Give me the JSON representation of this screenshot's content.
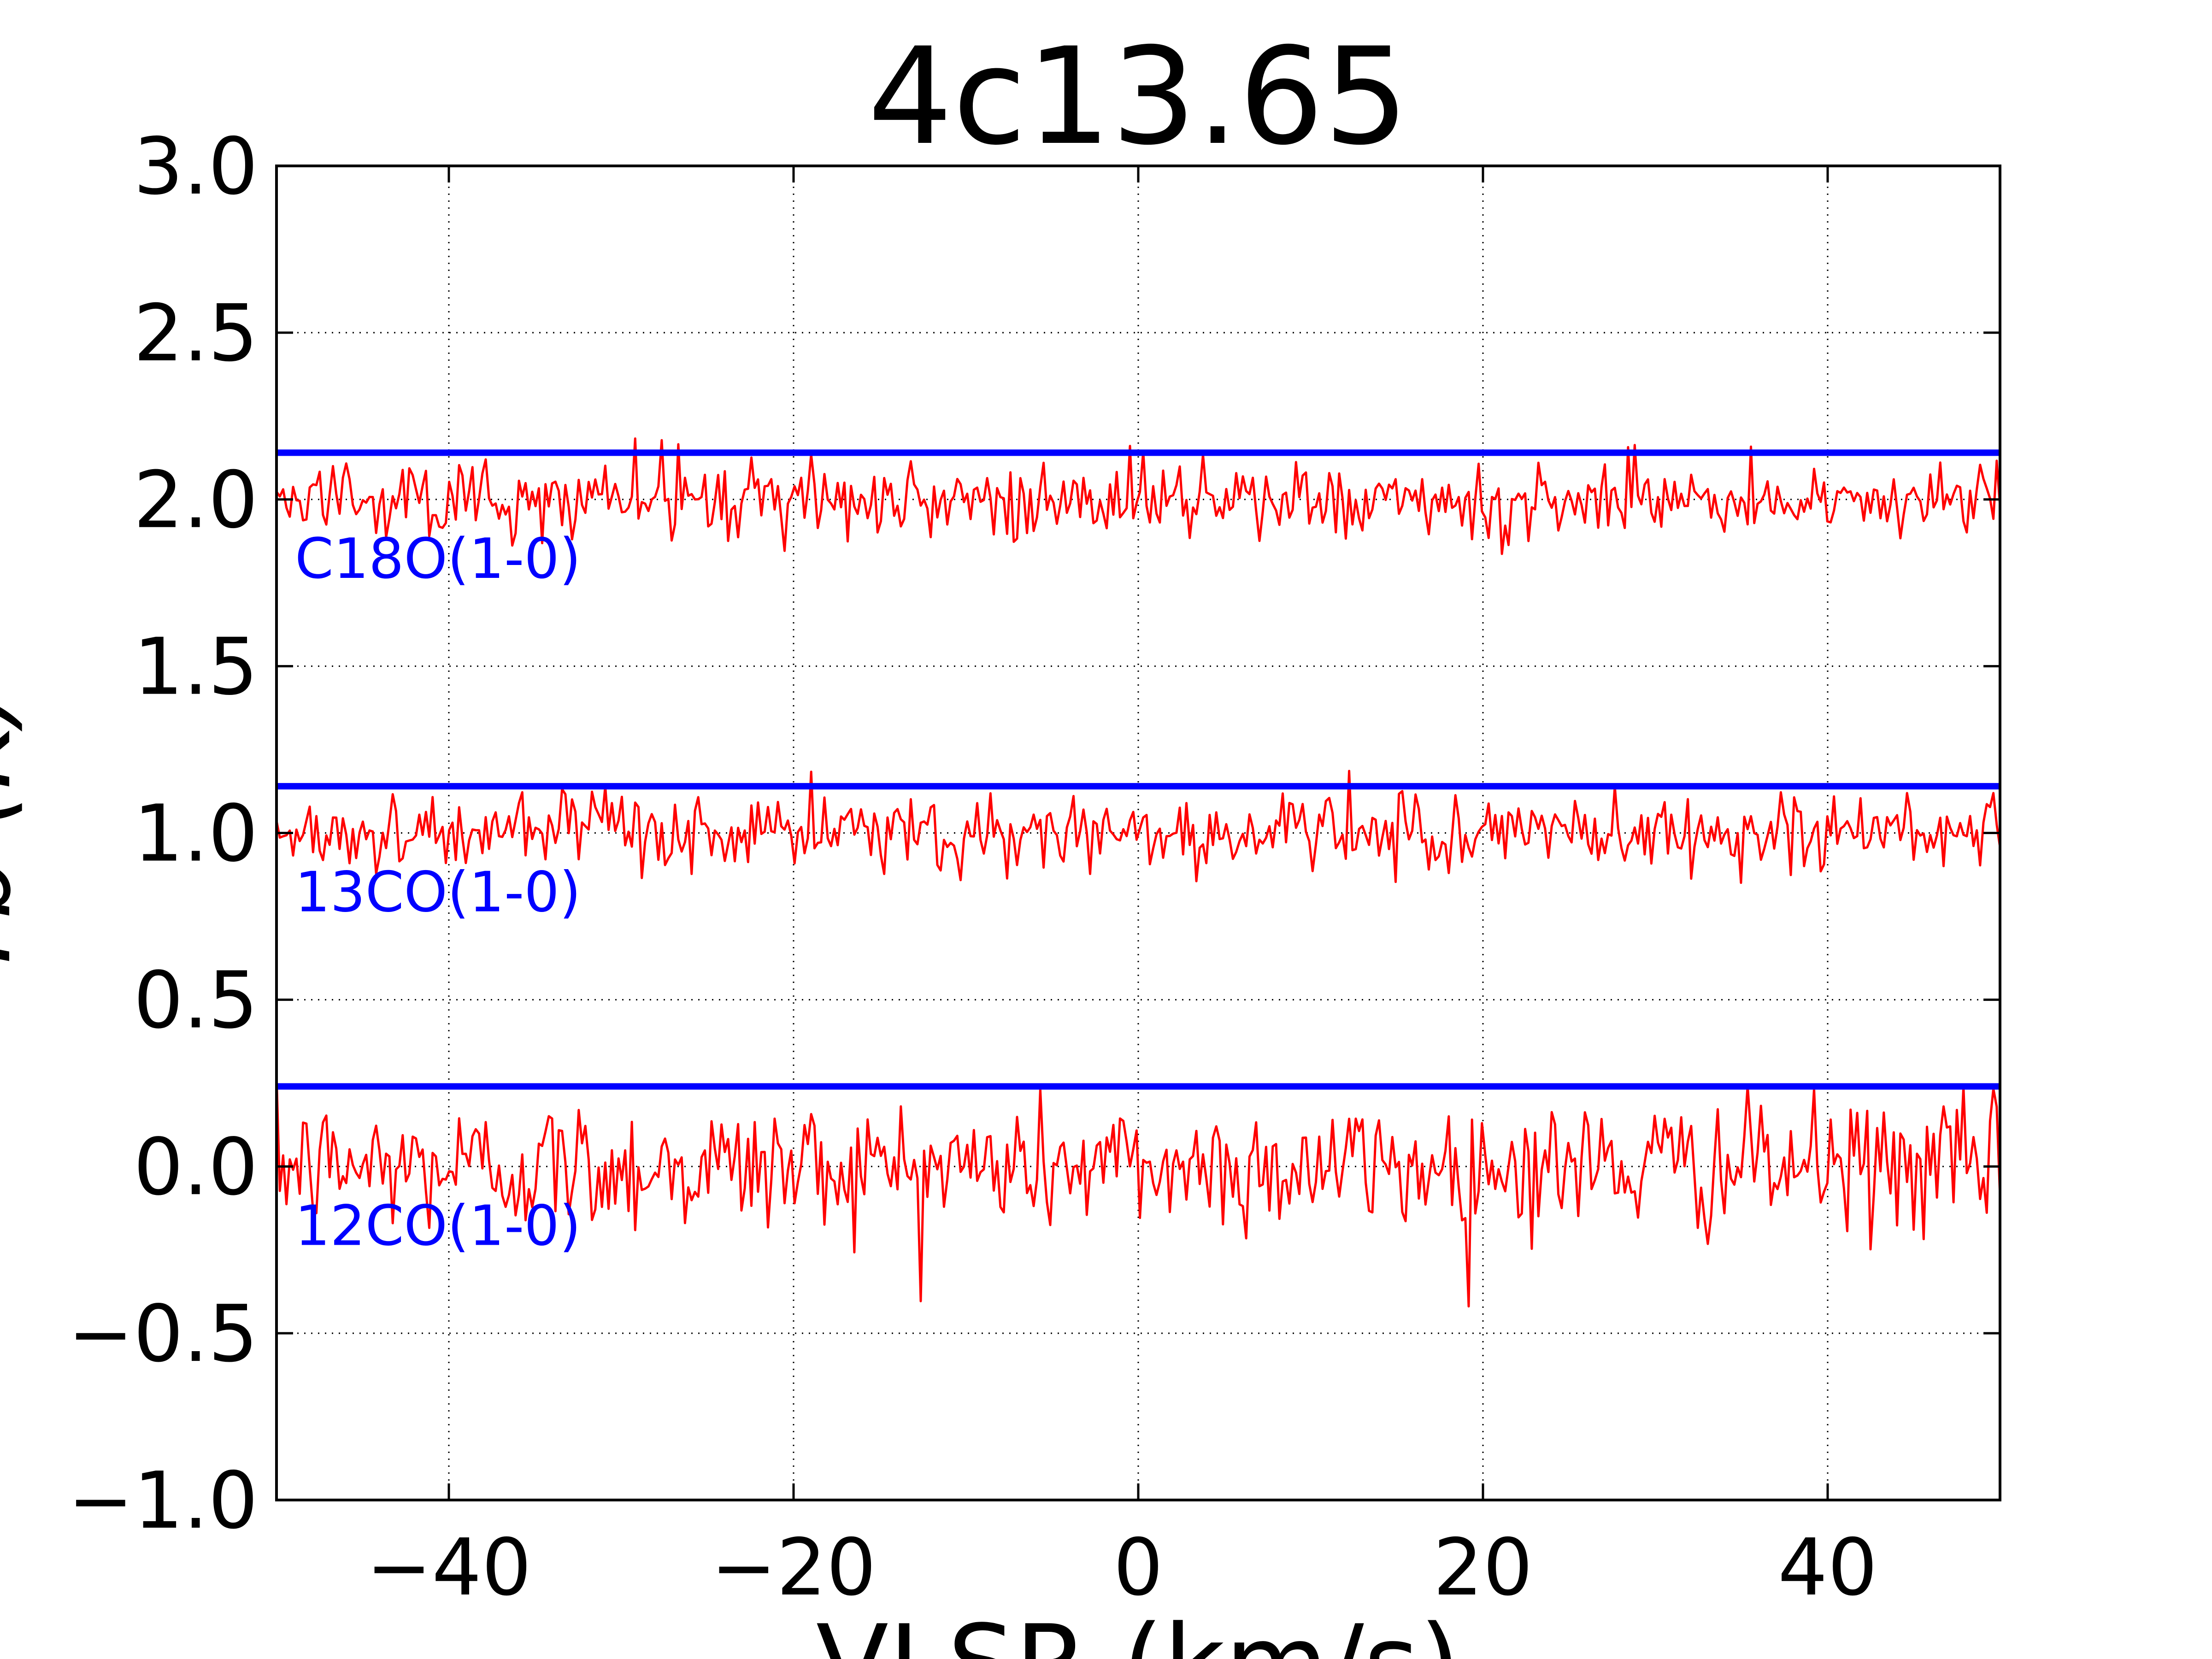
{
  "chart_data": {
    "type": "line",
    "title": "4c13.65",
    "xlabel": "VLSR (km/s)",
    "ylabel": "T_b (K)",
    "xlim": [
      -50,
      50
    ],
    "ylim": [
      -1.0,
      3.0
    ],
    "xticks": [
      -40,
      -20,
      0,
      20,
      40
    ],
    "xtick_labels": [
      "−40",
      "−20",
      "0",
      "20",
      "40"
    ],
    "yticks": [
      -1.0,
      -0.5,
      0.0,
      0.5,
      1.0,
      1.5,
      2.0,
      2.5,
      3.0
    ],
    "ytick_labels": [
      "−1.0",
      "−0.5",
      "0.0",
      "0.5",
      "1.0",
      "1.5",
      "2.0",
      "2.5",
      "3.0"
    ],
    "grid": true,
    "grid_style": "dotted",
    "series": [
      {
        "name": "12CO(1-0)",
        "baseline": 0.0,
        "threshold": 0.24,
        "noise_sigma": 0.1,
        "peak_max": 0.38,
        "peak_min": -0.42,
        "color": "#ff0000",
        "threshold_color": "#0000ff"
      },
      {
        "name": "13CO(1-0)",
        "baseline": 1.0,
        "threshold": 1.14,
        "noise_sigma": 0.06,
        "peak_max": 1.19,
        "peak_min": 0.8,
        "color": "#ff0000",
        "threshold_color": "#0000ff"
      },
      {
        "name": "C18O(1-0)",
        "baseline": 2.0,
        "threshold": 2.14,
        "noise_sigma": 0.06,
        "peak_max": 2.19,
        "peak_min": 1.81,
        "color": "#ff0000",
        "threshold_color": "#0000ff"
      }
    ],
    "label_color": "#0000ff"
  }
}
